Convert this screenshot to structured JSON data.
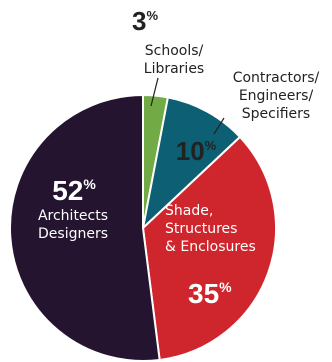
{
  "chart_data": {
    "type": "pie",
    "slices": [
      {
        "label_lines": [
          "Schools/",
          "Libraries"
        ],
        "value": 3,
        "value_text": "3",
        "pct_sign": "%",
        "color": "#72AB46"
      },
      {
        "label_lines": [
          "Contractors/",
          "Engineers/",
          "Specifiers"
        ],
        "value": 10,
        "value_text": "10",
        "pct_sign": "%",
        "color": "#0D5F73"
      },
      {
        "label_lines": [
          "Shade,",
          "Structures",
          "& Enclosures"
        ],
        "value": 35,
        "value_text": "35",
        "pct_sign": "%",
        "color": "#CF252C"
      },
      {
        "label_lines": [
          "Architects",
          "Designers"
        ],
        "value": 52,
        "value_text": "52",
        "pct_sign": "%",
        "color": "#24142F"
      }
    ]
  },
  "colors": {
    "label_dark": "#222222",
    "label_light": "#ffffff",
    "leader": "#222222"
  }
}
